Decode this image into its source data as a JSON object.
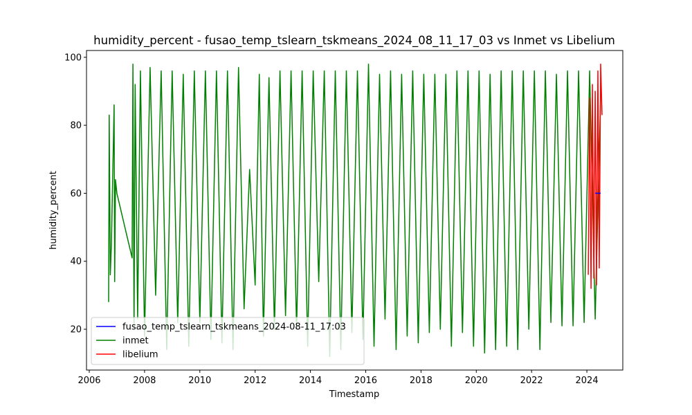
{
  "chart_data": {
    "type": "line",
    "title": "humidity_percent - fusao_temp_tslearn_tskmeans_2024_08_11_17_03 vs Inmet vs Libelium",
    "xlabel": "Timestamp",
    "ylabel": "humidity_percent",
    "xlim": [
      2005.9,
      2025.3
    ],
    "ylim": [
      8,
      102
    ],
    "xticks": [
      2006,
      2008,
      2010,
      2012,
      2014,
      2016,
      2018,
      2020,
      2022,
      2024
    ],
    "xtick_labels": [
      "2006",
      "2008",
      "2010",
      "2012",
      "2014",
      "2016",
      "2018",
      "2020",
      "2022",
      "2024"
    ],
    "yticks": [
      20,
      40,
      60,
      80,
      100
    ],
    "ytick_labels": [
      "20",
      "40",
      "60",
      "80",
      "100"
    ],
    "grid": false,
    "legend_position": "lower-left",
    "series": [
      {
        "name": "fusao_temp_tslearn_tskmeans_2024-08-11_17:03",
        "color": "#0000ff",
        "x": [
          2024.3,
          2024.5
        ],
        "y": [
          60,
          60
        ]
      },
      {
        "name": "inmet",
        "color": "#008000",
        "x": [
          2006.7,
          2006.72,
          2006.76,
          2006.8,
          2006.9,
          2006.92,
          2006.95,
          2007.0,
          2007.55,
          2007.58,
          2007.62,
          2007.66,
          2007.75,
          2007.85,
          2008.0,
          2008.2,
          2008.4,
          2008.6,
          2008.8,
          2009.0,
          2009.2,
          2009.4,
          2009.6,
          2009.8,
          2010.0,
          2010.2,
          2010.4,
          2010.6,
          2010.8,
          2011.0,
          2011.2,
          2011.4,
          2011.6,
          2011.8,
          2012.0,
          2012.15,
          2012.3,
          2012.5,
          2012.7,
          2012.9,
          2013.1,
          2013.3,
          2013.5,
          2013.7,
          2013.9,
          2014.1,
          2014.3,
          2014.5,
          2014.7,
          2014.9,
          2015.1,
          2015.3,
          2015.5,
          2015.7,
          2015.9,
          2016.1,
          2016.3,
          2016.5,
          2016.7,
          2016.9,
          2017.1,
          2017.3,
          2017.5,
          2017.7,
          2017.9,
          2018.1,
          2018.3,
          2018.5,
          2018.7,
          2018.9,
          2019.1,
          2019.3,
          2019.5,
          2019.7,
          2019.9,
          2020.1,
          2020.3,
          2020.5,
          2020.7,
          2020.9,
          2021.1,
          2021.3,
          2021.5,
          2021.7,
          2021.9,
          2022.1,
          2022.3,
          2022.5,
          2022.7,
          2022.9,
          2023.1,
          2023.3,
          2023.5,
          2023.7,
          2023.9,
          2024.1,
          2024.3,
          2024.5
        ],
        "y": [
          28,
          83,
          36,
          45,
          86,
          34,
          64,
          60,
          41,
          98,
          20,
          92,
          23,
          96,
          18,
          97,
          30,
          96,
          14,
          96,
          22,
          95,
          15,
          96,
          22,
          96,
          17,
          96,
          16,
          96,
          14,
          97,
          26,
          67,
          33,
          95,
          18,
          94,
          20,
          96,
          24,
          96,
          20,
          96,
          15,
          96,
          34,
          96,
          12,
          96,
          14,
          96,
          19,
          96,
          17,
          98,
          15,
          95,
          23,
          96,
          14,
          95,
          18,
          96,
          16,
          95,
          19,
          95,
          20,
          95,
          15,
          96,
          19,
          96,
          15,
          96,
          13,
          95,
          14,
          96,
          15,
          96,
          14,
          96,
          20,
          96,
          14,
          96,
          22,
          95,
          21,
          96,
          21,
          96,
          22,
          96,
          23,
          89
        ]
      },
      {
        "name": "libelium",
        "color": "#ff0000",
        "x": [
          2024.05,
          2024.1,
          2024.15,
          2024.2,
          2024.25,
          2024.3,
          2024.35,
          2024.4,
          2024.45,
          2024.5,
          2024.55
        ],
        "y": [
          36,
          88,
          32,
          92,
          35,
          90,
          33,
          96,
          38,
          98,
          83
        ]
      }
    ]
  }
}
